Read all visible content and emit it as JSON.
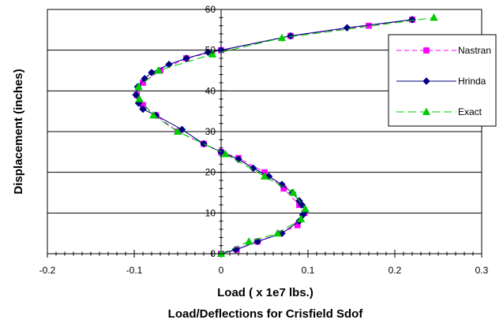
{
  "chart_data": {
    "type": "line",
    "title": "Load/Deflections for Crisfield Sdof",
    "xlabel": "Load ( x 1e7 lbs.)",
    "ylabel": "Displacement  (inches)",
    "xlim": [
      -0.2,
      0.3
    ],
    "ylim": [
      0,
      60
    ],
    "x_ticks": [
      "-0.2",
      "-0.1",
      "0",
      "0.1",
      "0.2",
      "0.3"
    ],
    "y_ticks": [
      "0",
      "10",
      "20",
      "30",
      "40",
      "50",
      "60"
    ],
    "grid": "horizontal",
    "legend_position": "right",
    "series": [
      {
        "name": "Nastran",
        "color": "#ff00ff",
        "line_style": "dashed",
        "marker": "square",
        "points": [
          [
            0,
            0
          ],
          [
            0.018,
            1
          ],
          [
            0.042,
            3
          ],
          [
            0.068,
            5
          ],
          [
            0.088,
            7
          ],
          [
            0.096,
            10
          ],
          [
            0.09,
            12
          ],
          [
            0.072,
            16
          ],
          [
            0.05,
            20
          ],
          [
            0.02,
            23.5
          ],
          [
            0,
            25
          ],
          [
            -0.02,
            27
          ],
          [
            -0.05,
            30
          ],
          [
            -0.075,
            34
          ],
          [
            -0.09,
            36.5
          ],
          [
            -0.097,
            39
          ],
          [
            -0.09,
            42
          ],
          [
            -0.07,
            45
          ],
          [
            -0.04,
            48
          ],
          [
            0,
            50
          ],
          [
            0.08,
            53.5
          ],
          [
            0.17,
            56
          ],
          [
            0.22,
            57.5
          ]
        ]
      },
      {
        "name": "Hrinda",
        "color": "#000080",
        "line_style": "solid",
        "marker": "diamond",
        "points": [
          [
            0,
            0
          ],
          [
            0.017,
            1
          ],
          [
            0.042,
            3
          ],
          [
            0.07,
            5
          ],
          [
            0.09,
            8
          ],
          [
            0.094,
            9.5
          ],
          [
            0.097,
            10.5
          ],
          [
            0.093,
            12
          ],
          [
            0.09,
            13
          ],
          [
            0.082,
            15
          ],
          [
            0.07,
            17
          ],
          [
            0.055,
            19
          ],
          [
            0.037,
            21
          ],
          [
            0.02,
            23.2
          ],
          [
            0,
            25
          ],
          [
            -0.02,
            27
          ],
          [
            -0.045,
            30.5
          ],
          [
            -0.075,
            34
          ],
          [
            -0.09,
            35.5
          ],
          [
            -0.095,
            37
          ],
          [
            -0.098,
            39
          ],
          [
            -0.096,
            41
          ],
          [
            -0.088,
            43
          ],
          [
            -0.08,
            44.5
          ],
          [
            -0.06,
            46.5
          ],
          [
            -0.04,
            48
          ],
          [
            -0.015,
            49.5
          ],
          [
            0,
            50
          ],
          [
            0.08,
            53.5
          ],
          [
            0.145,
            55.5
          ],
          [
            0.22,
            57.5
          ]
        ]
      },
      {
        "name": "Exact",
        "color": "#00cc00",
        "line_style": "longdash",
        "marker": "triangle",
        "points": [
          [
            0,
            0
          ],
          [
            0.032,
            3
          ],
          [
            0.065,
            5
          ],
          [
            0.092,
            8.5
          ],
          [
            0.097,
            11
          ],
          [
            0.083,
            15
          ],
          [
            0.05,
            19
          ],
          [
            0.005,
            24.5
          ],
          [
            -0.05,
            30
          ],
          [
            -0.078,
            34
          ],
          [
            -0.094,
            38
          ],
          [
            -0.095,
            41
          ],
          [
            -0.072,
            45
          ],
          [
            -0.01,
            49
          ],
          [
            0.07,
            53
          ],
          [
            0.245,
            58
          ]
        ]
      }
    ]
  }
}
